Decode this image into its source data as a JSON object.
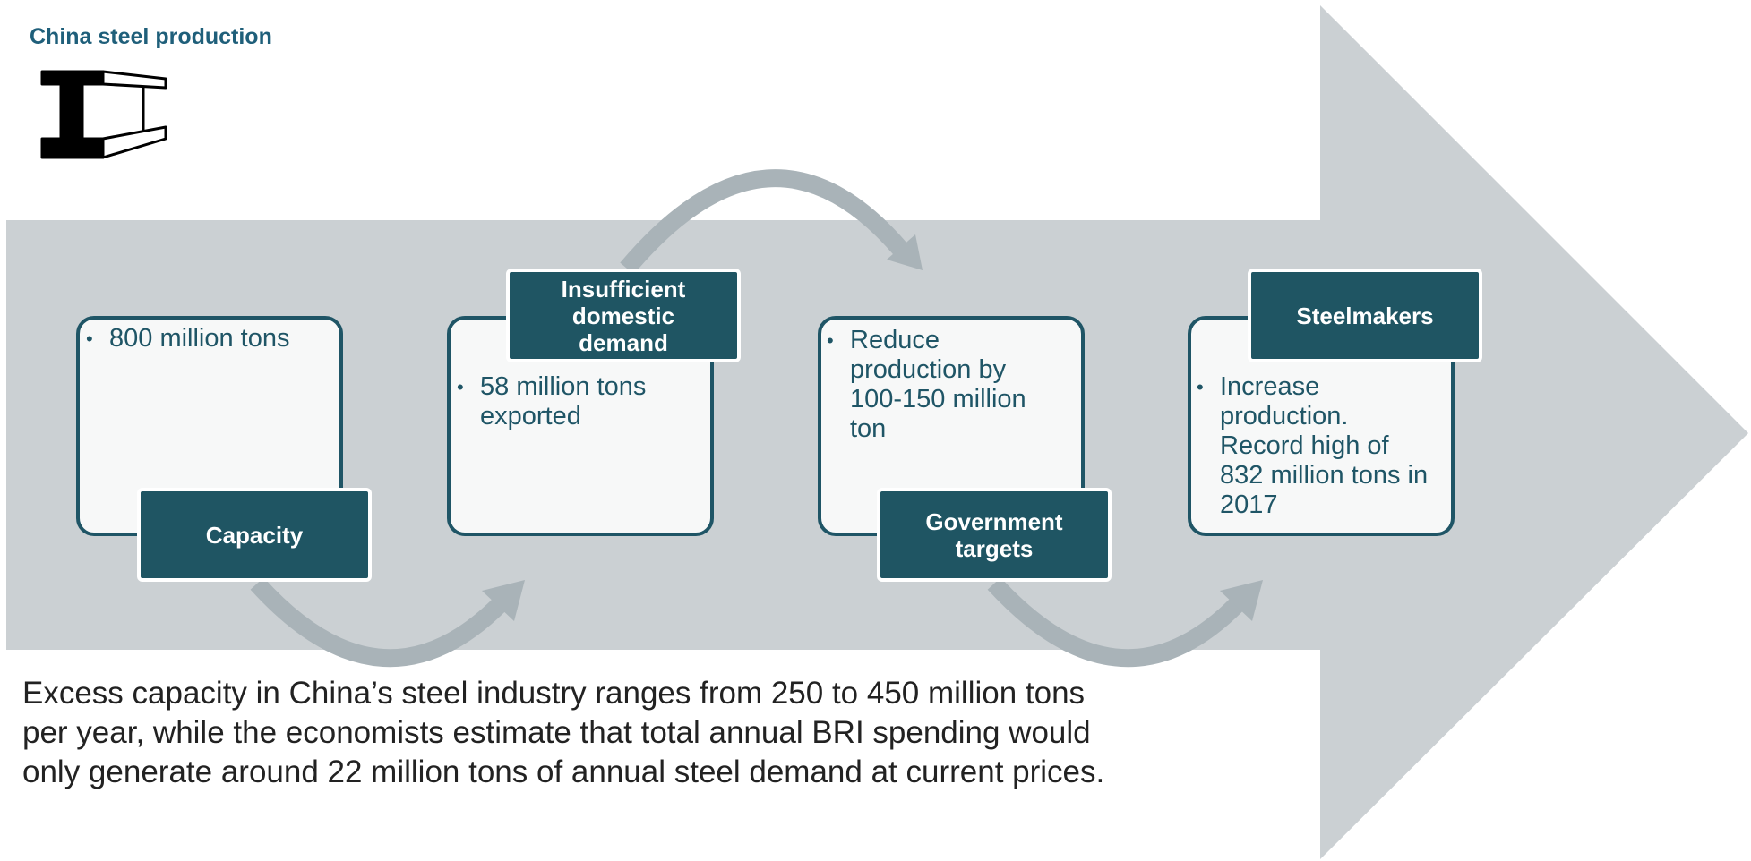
{
  "header": {
    "title": "China steel production"
  },
  "steps": [
    {
      "label": "Capacity",
      "bullet": "800 million tons"
    },
    {
      "label": "Insufficient domestic demand",
      "bullet": "58 million tons exported"
    },
    {
      "label": "Government targets",
      "bullet": "Reduce production by 100-150 million ton"
    },
    {
      "label": "Steelmakers",
      "bullet": "Increase production. Record high of 832 million tons in 2017"
    }
  ],
  "caption": [
    "Excess capacity in China’s steel industry ranges from 250 to 450 million tons",
    "per year, while the economists estimate that total annual BRI spending would",
    "only generate around 22 million tons of annual steel demand at current prices."
  ]
}
